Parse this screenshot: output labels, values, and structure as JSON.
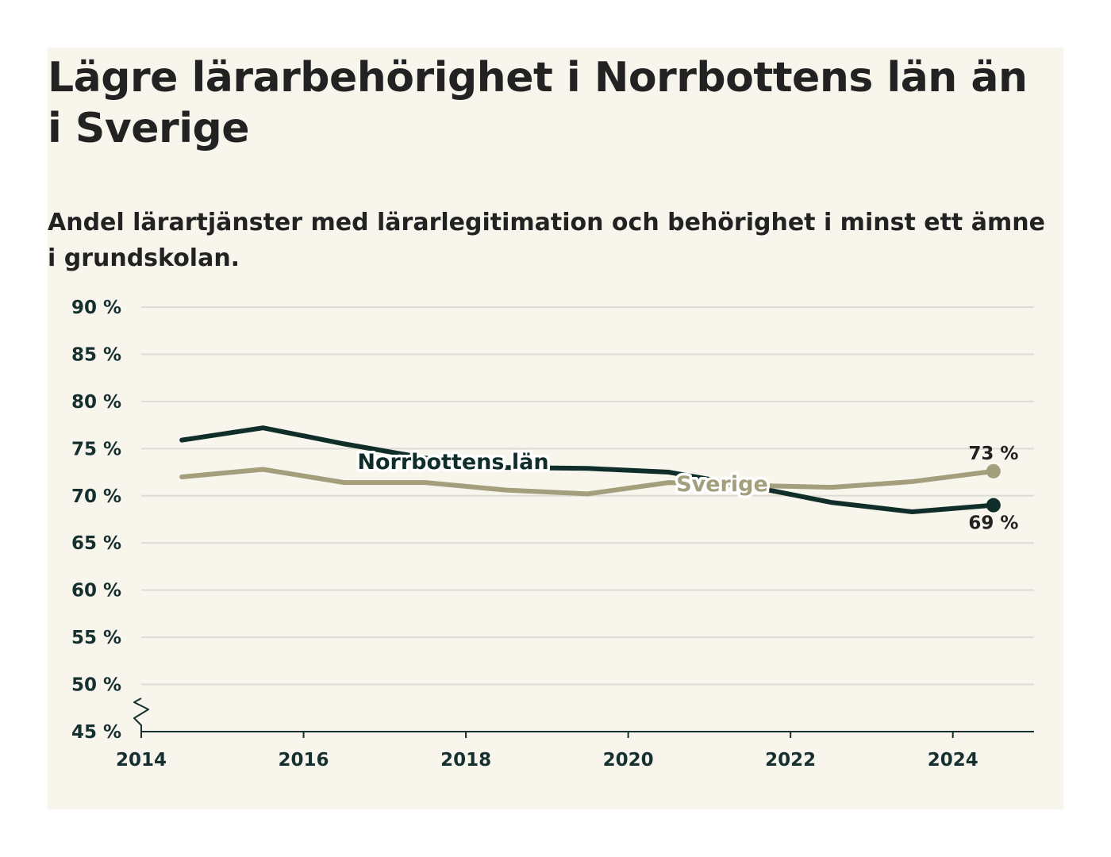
{
  "colors": {
    "background": "#f7f5ec",
    "grid": "#dddcd6",
    "axis": "#163030",
    "norrbotten": "#0f2e29",
    "sverige": "#a39e7b",
    "halo": "#ffffff"
  },
  "chart_data": {
    "type": "line",
    "title": "Lägre lärarbehörighet i Norrbottens län än i Sverige",
    "subtitle": "Andel lärartjänster med lärarlegitimation och behörighet i minst ett ämne i grundskolan.",
    "x": [
      2014.5,
      2015.5,
      2016.5,
      2017.5,
      2018.5,
      2019.5,
      2020.5,
      2021.5,
      2022.5,
      2023.5,
      2024.5
    ],
    "series": [
      {
        "name": "Norrbottens län",
        "values": [
          75.9,
          77.2,
          75.5,
          74.0,
          73.0,
          72.9,
          72.5,
          71.0,
          69.3,
          68.3,
          69.0
        ],
        "end_label": "69 %"
      },
      {
        "name": "Sverige",
        "values": [
          72.0,
          72.8,
          71.4,
          71.4,
          70.6,
          70.2,
          71.4,
          71.1,
          70.9,
          71.5,
          72.6
        ],
        "end_label": "73 %"
      }
    ],
    "y_ticks": [
      "45 %",
      "50 %",
      "55 %",
      "60 %",
      "65 %",
      "70 %",
      "75 %",
      "80 %",
      "85 %",
      "90 %"
    ],
    "y_tick_values": [
      45,
      50,
      55,
      60,
      65,
      70,
      75,
      80,
      85,
      90
    ],
    "x_ticks": [
      "2014",
      "2016",
      "2018",
      "2020",
      "2022",
      "2024"
    ],
    "x_tick_values": [
      2014,
      2016,
      2018,
      2020,
      2022,
      2024
    ],
    "xlim": [
      2014,
      2025
    ],
    "ylim": [
      45,
      90
    ],
    "y_axis_break": true,
    "grid": true,
    "legend": "inline labels on lines"
  }
}
